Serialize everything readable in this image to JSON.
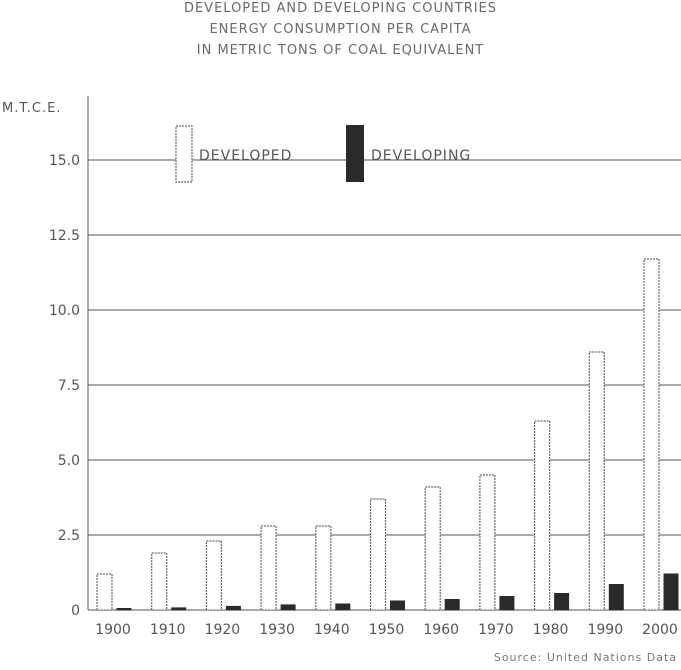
{
  "chart_data": {
    "type": "bar",
    "title_lines": [
      "DEVELOPED AND DEVELOPING COUNTRIES",
      "ENERGY CONSUMPTION PER CAPITA",
      "IN METRIC TONS OF COAL EQUIVALENT"
    ],
    "ylabel": "M.T.C.E.",
    "categories": [
      "1900",
      "1910",
      "1920",
      "1930",
      "1940",
      "1950",
      "1960",
      "1970",
      "1980",
      "1990",
      "2000"
    ],
    "series": [
      {
        "name": "DEVELOPED",
        "values": [
          1.2,
          1.9,
          2.3,
          2.8,
          2.8,
          3.7,
          4.1,
          4.5,
          6.3,
          8.6,
          11.7
        ],
        "style": "outline"
      },
      {
        "name": "DEVELOPING",
        "values": [
          0.05,
          0.07,
          0.12,
          0.17,
          0.2,
          0.3,
          0.35,
          0.45,
          0.55,
          0.85,
          1.2
        ],
        "style": "filled"
      }
    ],
    "yticks": [
      "0",
      "2.5",
      "5.0",
      "7.5",
      "10.0",
      "12.5",
      "15.0"
    ],
    "ylim": [
      0,
      17
    ],
    "grid": true,
    "legend_position": "top-left",
    "source": "Source: United Nations Data",
    "colors": {
      "outline": "#6a6a6a",
      "filled": "#2a2a2a",
      "grid": "#555555"
    }
  }
}
